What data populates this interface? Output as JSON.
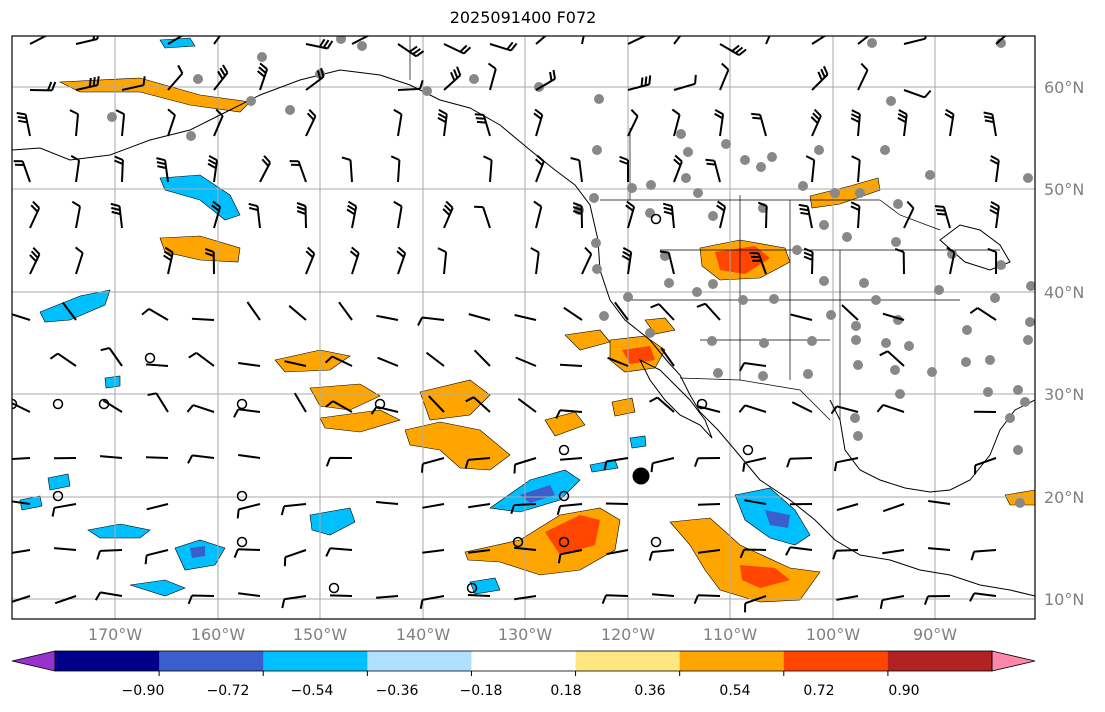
{
  "title": "2025091400 F072",
  "lat_labels": [
    "60°N",
    "50°N",
    "40°N",
    "30°N",
    "20°N",
    "10°N"
  ],
  "lon_labels": [
    "170°W",
    "160°W",
    "150°W",
    "140°W",
    "130°W",
    "120°W",
    "110°W",
    "100°W",
    "90°W"
  ],
  "colorbar": {
    "ticks": [
      "−0.90",
      "−0.72",
      "−0.54",
      "−0.36",
      "−0.18",
      "0.18",
      "0.36",
      "0.54",
      "0.72",
      "0.90"
    ],
    "colors": [
      "#9932cc",
      "#00008b",
      "#3a5fcd",
      "#00bfff",
      "#b0e0ff",
      "#ffffff",
      "#ffe680",
      "#ffa500",
      "#ff4500",
      "#b22222",
      "#ff88aa"
    ]
  },
  "colors": {
    "positive_1": "#ffa500",
    "positive_2": "#ff4500",
    "negative_1": "#00bfff",
    "negative_2": "#3a5fcd",
    "station_dot": "#888888",
    "grid": "#aaaaaa"
  }
}
